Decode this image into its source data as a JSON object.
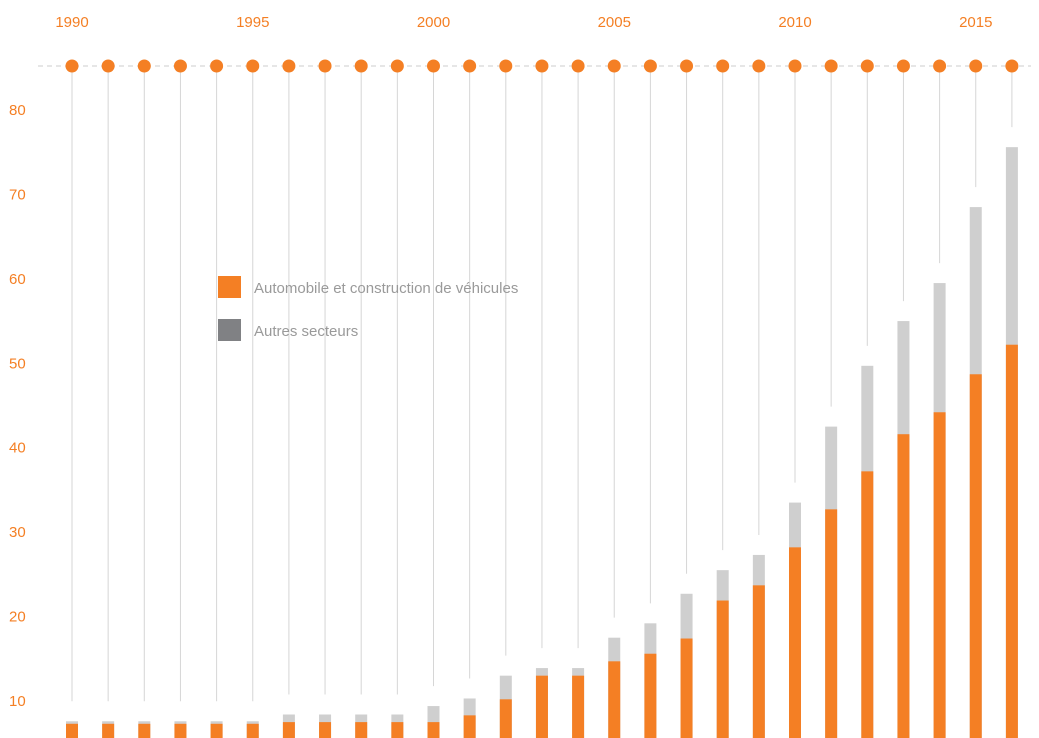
{
  "colors": {
    "accent": "#F47F24",
    "other": "#CFCFCF",
    "other_legend": "#808184",
    "stem": "#D6D6D6",
    "legend_text": "#9A9A9A",
    "dashed": "#CCCCCC"
  },
  "chart_data": {
    "type": "bar",
    "stacked": true,
    "x": [
      1990,
      1991,
      1992,
      1993,
      1994,
      1995,
      1996,
      1997,
      1998,
      1999,
      2000,
      2001,
      2002,
      2003,
      2004,
      2005,
      2006,
      2007,
      2008,
      2009,
      2010,
      2011,
      2012,
      2013,
      2014,
      2015,
      2016
    ],
    "x_tick_labels": [
      "1990",
      "1995",
      "2000",
      "2005",
      "2010",
      "2015"
    ],
    "x_tick_values": [
      1990,
      1995,
      2000,
      2005,
      2010,
      2015
    ],
    "y_tick_values": [
      10,
      20,
      30,
      40,
      50,
      60,
      70,
      80
    ],
    "ylim": [
      7.3,
      85
    ],
    "series": [
      {
        "name": "Automobile et construction de véhicules",
        "totals": [
          7.3,
          7.3,
          7.3,
          7.3,
          7.3,
          7.3,
          7.5,
          7.5,
          7.5,
          7.5,
          7.5,
          8.3,
          10.2,
          13.0,
          13.0,
          14.7,
          15.6,
          17.4,
          21.9,
          23.7,
          28.2,
          32.7,
          37.2,
          41.6,
          44.2,
          48.7,
          52.2
        ]
      },
      {
        "name": "Autres secteurs",
        "totals": [
          7.6,
          7.6,
          7.6,
          7.6,
          7.6,
          7.6,
          8.4,
          8.4,
          8.4,
          8.4,
          9.4,
          10.3,
          13.0,
          13.9,
          13.9,
          17.5,
          19.2,
          22.7,
          25.5,
          27.3,
          33.5,
          42.5,
          49.7,
          55.0,
          59.5,
          68.5,
          75.6
        ]
      }
    ],
    "grid": false,
    "legend_position": "top-left"
  }
}
